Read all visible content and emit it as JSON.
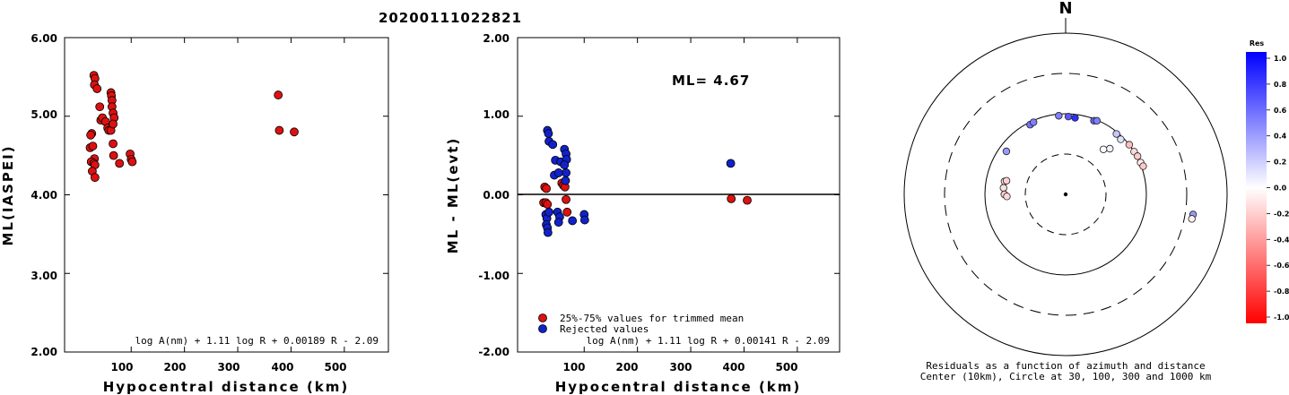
{
  "title": "20200111022821",
  "panel1": {
    "ylabel": "ML(IASPEI)",
    "xlabel": "Hypocentral distance (km)",
    "formula": "log A(nm) + 1.11 log R + 0.00189 R - 2.09",
    "yticks": [
      "6.00",
      "5.00",
      "4.00",
      "3.00",
      "2.00"
    ],
    "xticks": [
      "100",
      "200",
      "300",
      "400",
      "500"
    ]
  },
  "panel2": {
    "ylabel": "ML - ML(evt)",
    "xlabel": "Hypocentral distance (km)",
    "formula": "log A(nm) + 1.11 log R + 0.00141 R - 2.09",
    "ml_label": "ML= 4.67",
    "legend_trimmed": "25%-75% values for trimmed mean",
    "legend_rejected": "Rejected values",
    "yticks": [
      "2.00",
      "1.00",
      "0.00",
      "-1.00",
      "-2.00"
    ],
    "xticks": [
      "100",
      "200",
      "300",
      "400",
      "500"
    ]
  },
  "panel3": {
    "north": "N",
    "caption1": "Residuals as a function of azimuth and distance",
    "caption2": "Center (10km), Circle at 30, 100, 300 and 1000 km",
    "colorbar_title": "Res",
    "colorbar_ticks": [
      "1.0",
      "0.8",
      "0.6",
      "0.4",
      "0.2",
      "0.0",
      "-0.2",
      "-0.4",
      "-0.6",
      "-0.8",
      "-1.0"
    ]
  },
  "colors": {
    "red": "#dd1111",
    "blue": "#1122cc"
  },
  "chart_data": [
    {
      "type": "scatter",
      "title": "20200111022821",
      "xlabel": "Hypocentral distance (km)",
      "ylabel": "ML(IASPEI)",
      "xlim": [
        0,
        600
      ],
      "ylim": [
        2.0,
        6.0
      ],
      "series": [
        {
          "points": [
            [
              30,
              5.52
            ],
            [
              32,
              5.48
            ],
            [
              31,
              5.4
            ],
            [
              36,
              5.35
            ],
            [
              26,
              4.78
            ],
            [
              24,
              4.76
            ],
            [
              23,
              4.6
            ],
            [
              28,
              4.62
            ],
            [
              31,
              4.46
            ],
            [
              25,
              4.42
            ],
            [
              30,
              4.4
            ],
            [
              32,
              4.38
            ],
            [
              27,
              4.3
            ],
            [
              32,
              4.22
            ],
            [
              41,
              5.12
            ],
            [
              43,
              4.95
            ],
            [
              46,
              4.98
            ],
            [
              52,
              4.93
            ],
            [
              56,
              4.85
            ],
            [
              58,
              4.82
            ],
            [
              62,
              4.82
            ],
            [
              62,
              5.3
            ],
            [
              63,
              5.26
            ],
            [
              64,
              5.2
            ],
            [
              64,
              5.12
            ],
            [
              66,
              5.04
            ],
            [
              68,
              4.98
            ],
            [
              66,
              4.9
            ],
            [
              66,
              4.65
            ],
            [
              67,
              4.5
            ],
            [
              78,
              4.4
            ],
            [
              98,
              4.52
            ],
            [
              100,
              4.45
            ],
            [
              102,
              4.42
            ],
            [
              376,
              5.27
            ],
            [
              378,
              4.82
            ],
            [
              406,
              4.8
            ]
          ]
        }
      ]
    },
    {
      "type": "scatter",
      "xlabel": "Hypocentral distance (km)",
      "ylabel": "ML - ML(evt)",
      "xlim": [
        0,
        600
      ],
      "ylim": [
        -2.0,
        2.0
      ],
      "reference_line": 0.0,
      "series": [
        {
          "name": "25%-75% values for trimmed mean",
          "color": "#dd1111",
          "points": [
            [
              26,
              0.1
            ],
            [
              29,
              0.08
            ],
            [
              24,
              -0.1
            ],
            [
              28,
              -0.1
            ],
            [
              31,
              -0.12
            ],
            [
              58,
              0.15
            ],
            [
              61,
              0.12
            ],
            [
              64,
              0.1
            ],
            [
              66,
              -0.06
            ],
            [
              68,
              -0.22
            ],
            [
              376,
              -0.05
            ],
            [
              406,
              -0.07
            ]
          ]
        },
        {
          "name": "Rejected values",
          "color": "#1122cc",
          "points": [
            [
              31,
              0.82
            ],
            [
              33,
              0.78
            ],
            [
              34,
              0.68
            ],
            [
              41,
              0.64
            ],
            [
              46,
              0.44
            ],
            [
              56,
              0.42
            ],
            [
              63,
              0.58
            ],
            [
              66,
              0.52
            ],
            [
              67,
              0.45
            ],
            [
              63,
              0.38
            ],
            [
              66,
              0.28
            ],
            [
              44,
              0.25
            ],
            [
              52,
              0.28
            ],
            [
              65,
              0.18
            ],
            [
              28,
              -0.25
            ],
            [
              30,
              -0.3
            ],
            [
              34,
              -0.22
            ],
            [
              29,
              -0.38
            ],
            [
              31,
              -0.42
            ],
            [
              32,
              -0.48
            ],
            [
              50,
              -0.22
            ],
            [
              54,
              -0.28
            ],
            [
              52,
              -0.35
            ],
            [
              78,
              -0.33
            ],
            [
              100,
              -0.25
            ],
            [
              101,
              -0.32
            ],
            [
              375,
              0.4
            ]
          ]
        }
      ]
    },
    {
      "type": "scatter",
      "note": "polar residual map",
      "rings_km": [
        30,
        100,
        300,
        1000
      ],
      "colorbar_range": [
        -1.0,
        1.0
      ],
      "series": [
        {
          "points": [
            {
              "az": 333,
              "dist": 93,
              "res": 0.55
            },
            {
              "az": 336,
              "dist": 95,
              "res": 0.5
            },
            {
              "az": 306,
              "dist": 80,
              "res": 0.4
            },
            {
              "az": 355,
              "dist": 95,
              "res": 0.5
            },
            {
              "az": 2,
              "dist": 92,
              "res": 0.65
            },
            {
              "az": 7,
              "dist": 90,
              "res": 0.82
            },
            {
              "az": 21,
              "dist": 95,
              "res": 0.62
            },
            {
              "az": 23,
              "dist": 98,
              "res": 0.5
            },
            {
              "az": 40,
              "dist": 95,
              "res": 0.22
            },
            {
              "az": 45,
              "dist": 92,
              "res": 0.12
            },
            {
              "az": 44,
              "dist": 60,
              "res": 0.05
            },
            {
              "az": 40,
              "dist": 52,
              "res": -0.02
            },
            {
              "az": 52,
              "dist": 100,
              "res": -0.25
            },
            {
              "az": 58,
              "dist": 100,
              "res": -0.15
            },
            {
              "az": 62,
              "dist": 102,
              "res": -0.2
            },
            {
              "az": 67,
              "dist": 102,
              "res": -0.07
            },
            {
              "az": 70,
              "dist": 105,
              "res": -0.22
            },
            {
              "az": 282,
              "dist": 58,
              "res": -0.12
            },
            {
              "az": 283,
              "dist": 55,
              "res": -0.18
            },
            {
              "az": 276,
              "dist": 58,
              "res": -0.12
            },
            {
              "az": 270,
              "dist": 56,
              "res": -0.2
            },
            {
              "az": 268,
              "dist": 52,
              "res": -0.15
            },
            {
              "az": 99,
              "dist": 380,
              "res": 0.4
            },
            {
              "az": 101,
              "dist": 375,
              "res": -0.05
            }
          ]
        }
      ]
    }
  ]
}
